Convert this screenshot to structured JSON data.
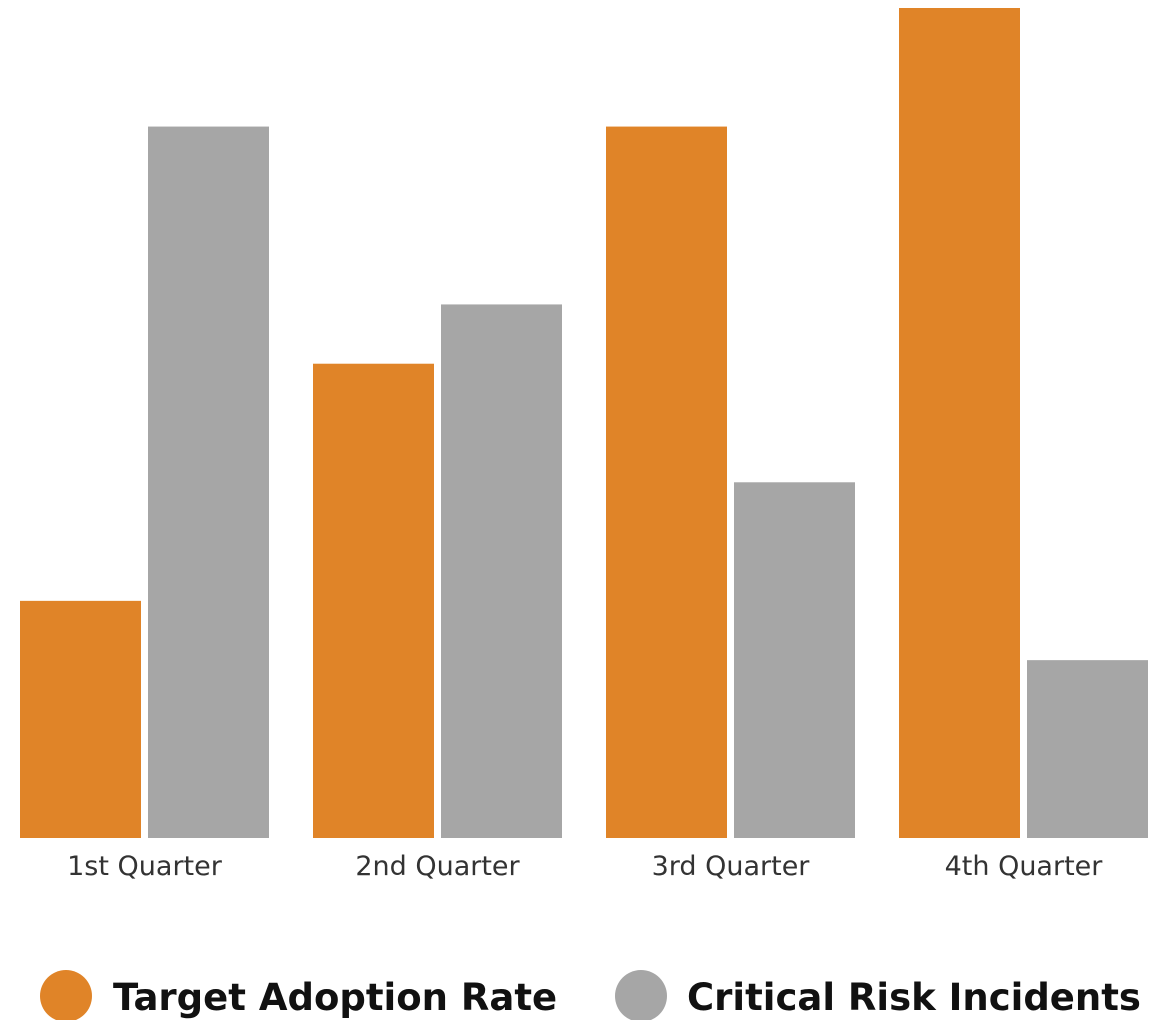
{
  "chart_data": {
    "type": "bar",
    "categories": [
      "1st Quarter",
      "2nd Quarter",
      "3rd Quarter",
      "4th Quarter"
    ],
    "series": [
      {
        "name": "Target Adoption Rate",
        "color": "#E08428",
        "values": [
          2,
          4,
          6,
          7
        ]
      },
      {
        "name": "Critical Risk Incidents",
        "color": "#A6A6A6",
        "values": [
          6,
          4.5,
          3,
          1.5
        ]
      }
    ],
    "ylim": [
      0,
      7
    ],
    "grid": false,
    "legend_position": "bottom"
  }
}
